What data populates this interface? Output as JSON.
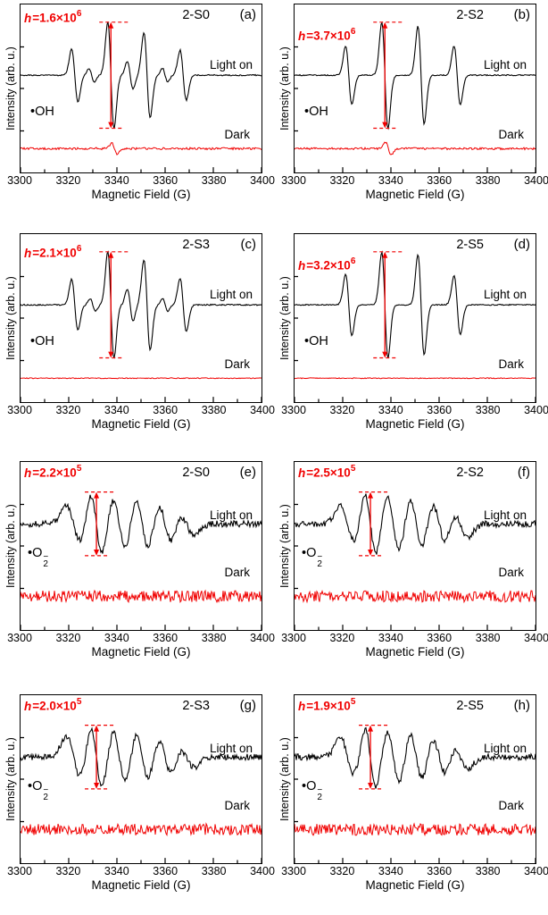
{
  "figure": {
    "xlabel": "Magnetic Field (G)",
    "ylabel": "Intensity (arb. u.)",
    "x_ticks": [
      "3300",
      "3320",
      "3340",
      "3360",
      "3380",
      "3400"
    ],
    "x_range": [
      3300,
      3400
    ],
    "colors": {
      "light_trace": "#000000",
      "dark_trace": "#f00000",
      "annotation": "#f00000"
    }
  },
  "chart_data": [
    {
      "type": "line",
      "panel": "(a)",
      "sample": "2-S0",
      "h_var": "h",
      "h_eq": "=1.6×10",
      "h_exp": "6",
      "h_value": 1600000,
      "radical_main": "•OH",
      "radical_sub": "",
      "radical_sup": "",
      "light_label": "Light on",
      "dark_label": "Dark",
      "group": "OH",
      "x_range": [
        3300,
        3400
      ],
      "arrow_x": 3337.5,
      "noise": 0.012,
      "dark_noise": 0.02,
      "dark_blip": 0.1,
      "peaks": [
        {
          "center": 3322.5,
          "amp": 0.5,
          "width": 1.3
        },
        {
          "center": 3329.5,
          "amp": 0.13,
          "width": 1.1
        },
        {
          "center": 3337.5,
          "amp": 1.0,
          "width": 1.3
        },
        {
          "center": 3345.5,
          "amp": 0.26,
          "width": 1.2
        },
        {
          "center": 3352.5,
          "amp": 0.8,
          "width": 1.3
        },
        {
          "center": 3360.0,
          "amp": 0.13,
          "width": 1.1
        },
        {
          "center": 3367.5,
          "amp": 0.47,
          "width": 1.3
        }
      ]
    },
    {
      "type": "line",
      "panel": "(b)",
      "sample": "2-S2",
      "h_var": "h",
      "h_eq": "=3.7×10",
      "h_exp": "6",
      "h_value": 3700000,
      "radical_main": "•OH",
      "radical_sub": "",
      "radical_sup": "",
      "light_label": "Light on",
      "dark_label": "Dark",
      "group": "OH",
      "x_range": [
        3300,
        3400
      ],
      "arrow_x": 3337.5,
      "noise": 0.01,
      "dark_noise": 0.02,
      "dark_blip": 0.12,
      "peaks": [
        {
          "center": 3322.5,
          "amp": 0.55,
          "width": 1.3
        },
        {
          "center": 3337.5,
          "amp": 1.0,
          "width": 1.3
        },
        {
          "center": 3352.5,
          "amp": 0.92,
          "width": 1.3
        },
        {
          "center": 3367.5,
          "amp": 0.55,
          "width": 1.3
        }
      ]
    },
    {
      "type": "line",
      "panel": "(c)",
      "sample": "2-S3",
      "h_var": "h",
      "h_eq": "=2.1×10",
      "h_exp": "6",
      "h_value": 2100000,
      "radical_main": "•OH",
      "radical_sub": "",
      "radical_sup": "",
      "light_label": "Light on",
      "dark_label": "Dark",
      "group": "OH",
      "x_range": [
        3300,
        3400
      ],
      "arrow_x": 3337.5,
      "noise": 0.012,
      "dark_noise": 0.008,
      "dark_blip": 0,
      "peaks": [
        {
          "center": 3322.5,
          "amp": 0.48,
          "width": 1.3
        },
        {
          "center": 3330.0,
          "amp": 0.12,
          "width": 1.1
        },
        {
          "center": 3337.5,
          "amp": 1.0,
          "width": 1.3
        },
        {
          "center": 3345.5,
          "amp": 0.3,
          "width": 1.2
        },
        {
          "center": 3352.5,
          "amp": 0.85,
          "width": 1.3
        },
        {
          "center": 3360.0,
          "amp": 0.12,
          "width": 1.1
        },
        {
          "center": 3367.5,
          "amp": 0.5,
          "width": 1.3
        }
      ]
    },
    {
      "type": "line",
      "panel": "(d)",
      "sample": "2-S5",
      "h_var": "h",
      "h_eq": "=3.2×10",
      "h_exp": "6",
      "h_value": 3200000,
      "radical_main": "•OH",
      "radical_sub": "",
      "radical_sup": "",
      "light_label": "Light on",
      "dark_label": "Dark",
      "group": "OH",
      "x_range": [
        3300,
        3400
      ],
      "arrow_x": 3337.5,
      "noise": 0.01,
      "dark_noise": 0.008,
      "dark_blip": 0,
      "peaks": [
        {
          "center": 3322.5,
          "amp": 0.58,
          "width": 1.3
        },
        {
          "center": 3337.5,
          "amp": 1.0,
          "width": 1.3
        },
        {
          "center": 3352.5,
          "amp": 0.95,
          "width": 1.3
        },
        {
          "center": 3367.5,
          "amp": 0.56,
          "width": 1.3
        }
      ]
    },
    {
      "type": "line",
      "panel": "(e)",
      "sample": "2-S0",
      "h_var": "h",
      "h_eq": "=2.2×10",
      "h_exp": "5",
      "h_value": 220000,
      "radical_main": "•O",
      "radical_sub": "2",
      "radical_sup": "−",
      "light_label": "Light on",
      "dark_label": "Dark",
      "group": "O2",
      "x_range": [
        3300,
        3400
      ],
      "arrow_x": 3331.5,
      "noise": 0.1,
      "dark_noise": 0.18,
      "dark_blip": 0,
      "peaks": [
        {
          "center": 3322.0,
          "amp": 0.6,
          "width": 3.0
        },
        {
          "center": 3331.5,
          "amp": 1.0,
          "width": 2.4
        },
        {
          "center": 3341.0,
          "amp": 0.8,
          "width": 2.6
        },
        {
          "center": 3350.5,
          "amp": 0.8,
          "width": 2.6
        },
        {
          "center": 3360.0,
          "amp": 0.62,
          "width": 2.8
        },
        {
          "center": 3369.0,
          "amp": 0.35,
          "width": 3.0
        }
      ]
    },
    {
      "type": "line",
      "panel": "(f)",
      "sample": "2-S2",
      "h_var": "h",
      "h_eq": "=2.5×10",
      "h_exp": "5",
      "h_value": 250000,
      "radical_main": "•O",
      "radical_sub": "2",
      "radical_sup": "−",
      "light_label": "Light on",
      "dark_label": "Dark",
      "group": "O2",
      "x_range": [
        3300,
        3400
      ],
      "arrow_x": 3331.5,
      "noise": 0.1,
      "dark_noise": 0.18,
      "dark_blip": 0,
      "peaks": [
        {
          "center": 3322.0,
          "amp": 0.58,
          "width": 3.0
        },
        {
          "center": 3331.5,
          "amp": 1.0,
          "width": 2.4
        },
        {
          "center": 3341.0,
          "amp": 0.85,
          "width": 2.6
        },
        {
          "center": 3350.5,
          "amp": 0.78,
          "width": 2.6
        },
        {
          "center": 3360.0,
          "amp": 0.65,
          "width": 2.8
        },
        {
          "center": 3369.0,
          "amp": 0.4,
          "width": 3.0
        }
      ]
    },
    {
      "type": "line",
      "panel": "(g)",
      "sample": "2-S3",
      "h_var": "h",
      "h_eq": "=2.0×10",
      "h_exp": "5",
      "h_value": 200000,
      "radical_main": "•O",
      "radical_sub": "2",
      "radical_sup": "−",
      "light_label": "Light on",
      "dark_label": "Dark",
      "group": "O2",
      "x_range": [
        3300,
        3400
      ],
      "arrow_x": 3331.5,
      "noise": 0.1,
      "dark_noise": 0.18,
      "dark_blip": 0,
      "peaks": [
        {
          "center": 3322.0,
          "amp": 0.65,
          "width": 3.0
        },
        {
          "center": 3331.5,
          "amp": 1.0,
          "width": 2.4
        },
        {
          "center": 3341.0,
          "amp": 0.8,
          "width": 2.6
        },
        {
          "center": 3350.5,
          "amp": 0.75,
          "width": 2.6
        },
        {
          "center": 3360.0,
          "amp": 0.58,
          "width": 2.8
        },
        {
          "center": 3369.0,
          "amp": 0.33,
          "width": 3.0
        }
      ]
    },
    {
      "type": "line",
      "panel": "(h)",
      "sample": "2-S5",
      "h_var": "h",
      "h_eq": "=1.9×10",
      "h_exp": "5",
      "h_value": 190000,
      "radical_main": "•O",
      "radical_sub": "2",
      "radical_sup": "−",
      "light_label": "Light on",
      "dark_label": "Dark",
      "group": "O2",
      "x_range": [
        3300,
        3400
      ],
      "arrow_x": 3331.5,
      "noise": 0.1,
      "dark_noise": 0.18,
      "dark_blip": 0,
      "peaks": [
        {
          "center": 3322.0,
          "amp": 0.6,
          "width": 3.0
        },
        {
          "center": 3331.5,
          "amp": 1.0,
          "width": 2.4
        },
        {
          "center": 3341.0,
          "amp": 0.85,
          "width": 2.6
        },
        {
          "center": 3350.5,
          "amp": 0.75,
          "width": 2.6
        },
        {
          "center": 3360.0,
          "amp": 0.6,
          "width": 2.8
        },
        {
          "center": 3369.0,
          "amp": 0.35,
          "width": 3.0
        }
      ]
    }
  ]
}
